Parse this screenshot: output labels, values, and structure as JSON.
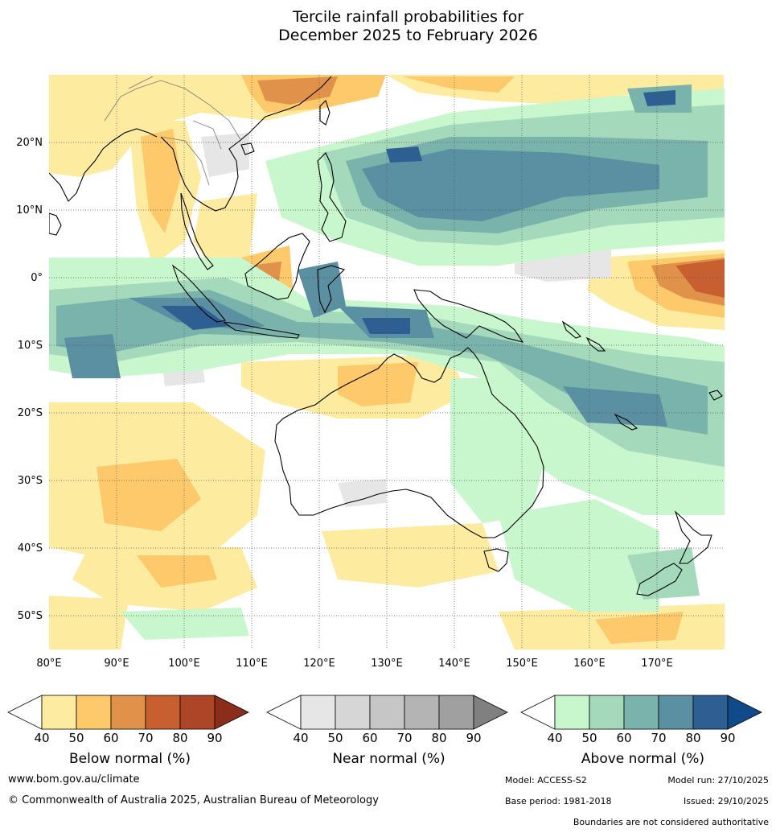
{
  "title": {
    "line1": "Tercile rainfall probabilities for",
    "line2": "December 2025 to February 2026"
  },
  "map": {
    "lat_labels": [
      "20°N",
      "10°N",
      "0°",
      "10°S",
      "20°S",
      "30°S",
      "40°S",
      "50°S"
    ],
    "lon_labels": [
      "80°E",
      "90°E",
      "100°E",
      "110°E",
      "120°E",
      "130°E",
      "140°E",
      "150°E",
      "160°E",
      "170°E"
    ],
    "lat_range": [
      -55,
      30
    ],
    "lon_range": [
      80,
      180
    ]
  },
  "legends": [
    {
      "title": "Below normal (%)",
      "ticks": [
        "40",
        "50",
        "60",
        "70",
        "80",
        "90"
      ],
      "colors": [
        "#fdeca0",
        "#fdc96a",
        "#e0924a",
        "#c85f30",
        "#ac4627",
        "#8c2d1c"
      ]
    },
    {
      "title": "Near normal (%)",
      "ticks": [
        "40",
        "50",
        "60",
        "70",
        "80",
        "90"
      ],
      "colors": [
        "#e6e6e6",
        "#d6d6d6",
        "#c6c6c6",
        "#b4b4b4",
        "#a0a0a0",
        "#808080"
      ]
    },
    {
      "title": "Above normal (%)",
      "ticks": [
        "40",
        "50",
        "60",
        "70",
        "80",
        "90"
      ],
      "colors": [
        "#c8f7cd",
        "#a5d9bc",
        "#7ab3ab",
        "#5b8fa2",
        "#2e5f93",
        "#0f4a8a"
      ]
    }
  ],
  "footer": {
    "website": "www.bom.gov.au/climate",
    "copyright": "© Commonwealth of Australia 2025, Australian Bureau of Meteorology",
    "model": "Model: ACCESS-S2",
    "model_run": "Model run: 27/10/2025",
    "base_period": "Base period: 1981-2018",
    "issued": "Issued: 29/10/2025",
    "disclaimer": "Boundaries are not considered authoritative"
  }
}
